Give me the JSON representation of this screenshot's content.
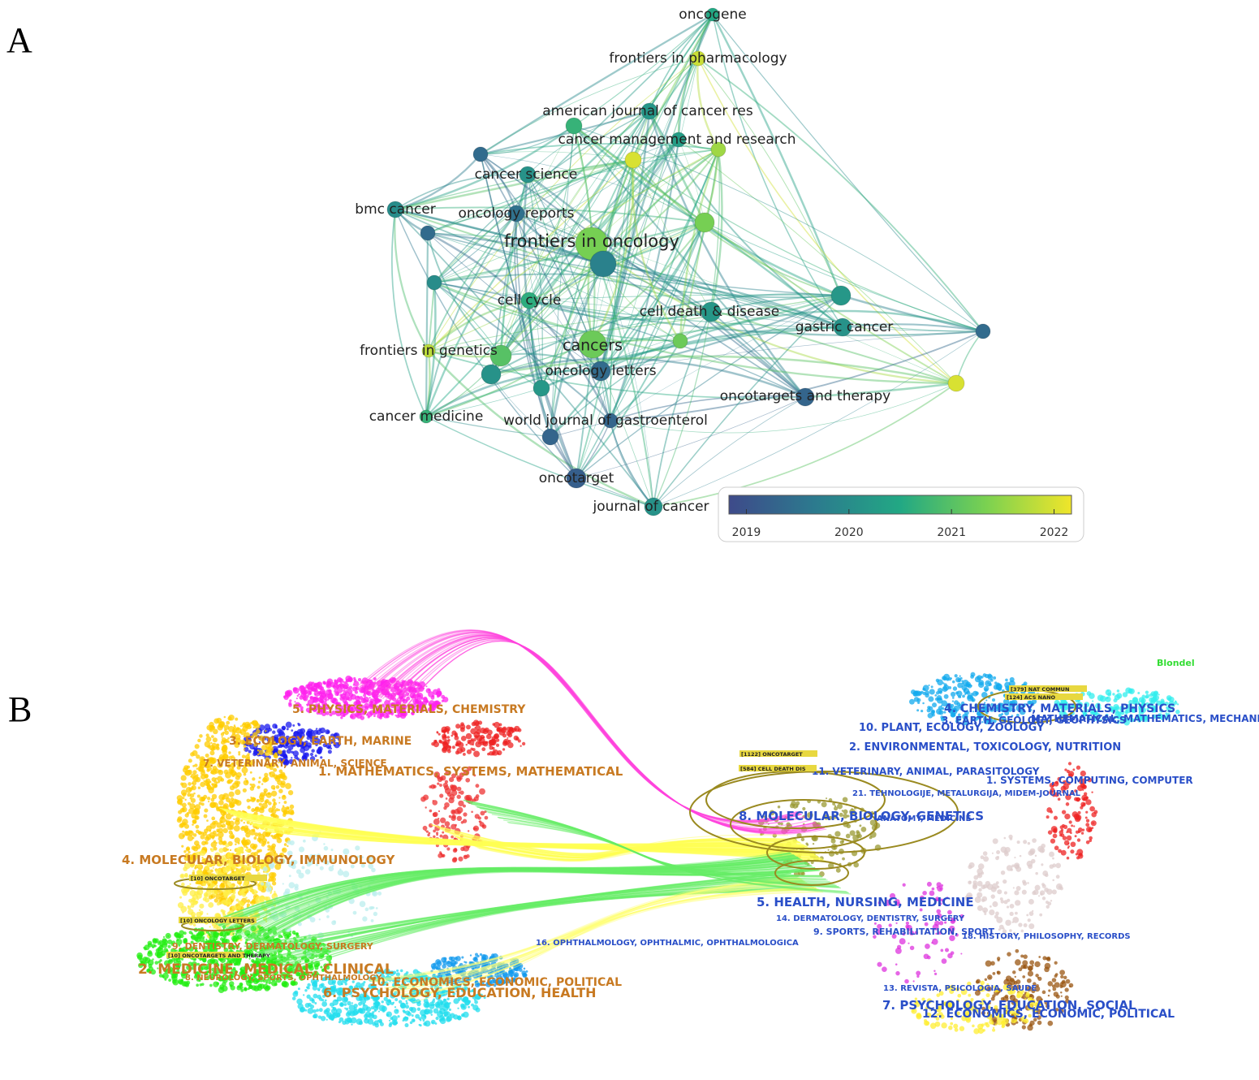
{
  "panel_a": {
    "label": "A",
    "nodes": [
      {
        "label": "oncogene",
        "year": 2020.5
      },
      {
        "label": "frontiers in pharmacology",
        "year": 2021.9
      },
      {
        "label": "american journal of cancer res",
        "year": 2020.2
      },
      {
        "label": "cancer management and research",
        "year": 2020.3
      },
      {
        "label": "cancer science",
        "year": 2020.1
      },
      {
        "label": "bmc cancer",
        "year": 2020.0
      },
      {
        "label": "oncology reports",
        "year": 2019.5
      },
      {
        "label": "frontiers in oncology",
        "year": 2021.3
      },
      {
        "label": "cell cycle",
        "year": 2020.6
      },
      {
        "label": "cell death & disease",
        "year": 2020.2
      },
      {
        "label": "gastric cancer",
        "year": 2020.1
      },
      {
        "label": "frontiers in genetics",
        "year": 2021.8
      },
      {
        "label": "cancers",
        "year": 2021.2
      },
      {
        "label": "oncology letters",
        "year": 2019.4
      },
      {
        "label": "oncotargets and therapy",
        "year": 2019.3
      },
      {
        "label": "cancer medicine",
        "year": 2020.7
      },
      {
        "label": "world journal of gastroenterol",
        "year": 2019.3
      },
      {
        "label": "oncotarget",
        "year": 2019.2
      },
      {
        "label": "journal of cancer",
        "year": 2020.1
      },
      {
        "label": null,
        "year": 2019.4
      },
      {
        "label": null,
        "year": 2020.7
      },
      {
        "label": null,
        "year": 2022.0
      },
      {
        "label": null,
        "year": 2021.6
      },
      {
        "label": null,
        "year": 2019.4
      },
      {
        "label": null,
        "year": 2019.8
      },
      {
        "label": null,
        "year": 2020.0
      },
      {
        "label": null,
        "year": 2021.3
      },
      {
        "label": null,
        "year": 2020.2
      },
      {
        "label": null,
        "year": 2019.4
      },
      {
        "label": null,
        "year": 2022.0
      },
      {
        "label": null,
        "year": 2021.2
      },
      {
        "label": null,
        "year": 2021.0
      },
      {
        "label": null,
        "year": 2020.1
      },
      {
        "label": null,
        "year": 2020.2
      },
      {
        "label": null,
        "year": 2019.3
      }
    ],
    "colorbar": {
      "range": [
        2018.83,
        2022.17
      ],
      "ticks": [
        2019,
        2020,
        2021,
        2022
      ],
      "colors": [
        "#3e4a8a",
        "#2c7a8e",
        "#22a884",
        "#7ad151",
        "#f0e52a"
      ]
    }
  },
  "panel_b": {
    "label": "B",
    "method": "Blondel",
    "citing_labels": [
      "5. PHYSICS, MATERIALS, CHEMISTRY",
      "3. ECOLOGY, EARTH, MARINE",
      "7. VETERINARY, ANIMAL, SCIENCE",
      "1. MATHEMATICS, SYSTEMS, MATHEMATICAL",
      "4. MOLECULAR, BIOLOGY, IMMUNOLOGY",
      "9. DENTISTRY, DERMATOLOGY, SURGERY",
      "2. MEDICINE, MEDICAL, CLINICAL",
      "8. NEUROLOGY, SPORTS, OPHTHALMOLOGY",
      "10. ECONOMICS, ECONOMIC, POLITICAL",
      "6. PSYCHOLOGY, EDUCATION, HEALTH"
    ],
    "cited_labels": [
      "4. CHEMISTRY, MATERIALS, PHYSICS",
      "3. EARTH, GEOLOGY, GEOPHYSICS",
      "MATHEMATICAL, MATHEMATICS, MECHANICS",
      "10. PLANT, ECOLOGY, ZOOLOGY",
      "2. ENVIRONMENTAL, TOXICOLOGY, NUTRITION",
      "11. VETERINARY, ANIMAL, PARASITOLOGY",
      "1. SYSTEMS, COMPUTING, COMPUTER",
      "21. TEHNOLOGIJE, METALURGIJA, MIDEM-JOURNAL",
      "8. MOLECULAR, BIOLOGY, GENETICS",
      "ANATOMY, MEDICINE",
      "5. HEALTH, NURSING, MEDICINE",
      "14. DERMATOLOGY, DENTISTRY, SURGERY",
      "9. SPORTS, REHABILITATION, SPORT",
      "18. HISTORY, PHILOSOPHY, RECORDS",
      "16. OPHTHALMOLOGY, OPHTHALMIC, OPHTHALMOLOGICA",
      "13. REVISTA, PSICOLOGIA, SAUDE",
      "7. PSYCHOLOGY, EDUCATION, SOCIAL",
      "12. ECONOMICS, ECONOMIC, POLITICAL"
    ],
    "journal_labels": [
      "[10] ONCOTARGET",
      "[10] ONCOLOGY LETTERS",
      "[10] ONCOTARGETS AND THERAPY",
      "[1122] ONCOTARGET",
      "[584] CELL DEATH DIS",
      "[379] NAT COMMUN",
      "[124] ACS NANO"
    ]
  }
}
